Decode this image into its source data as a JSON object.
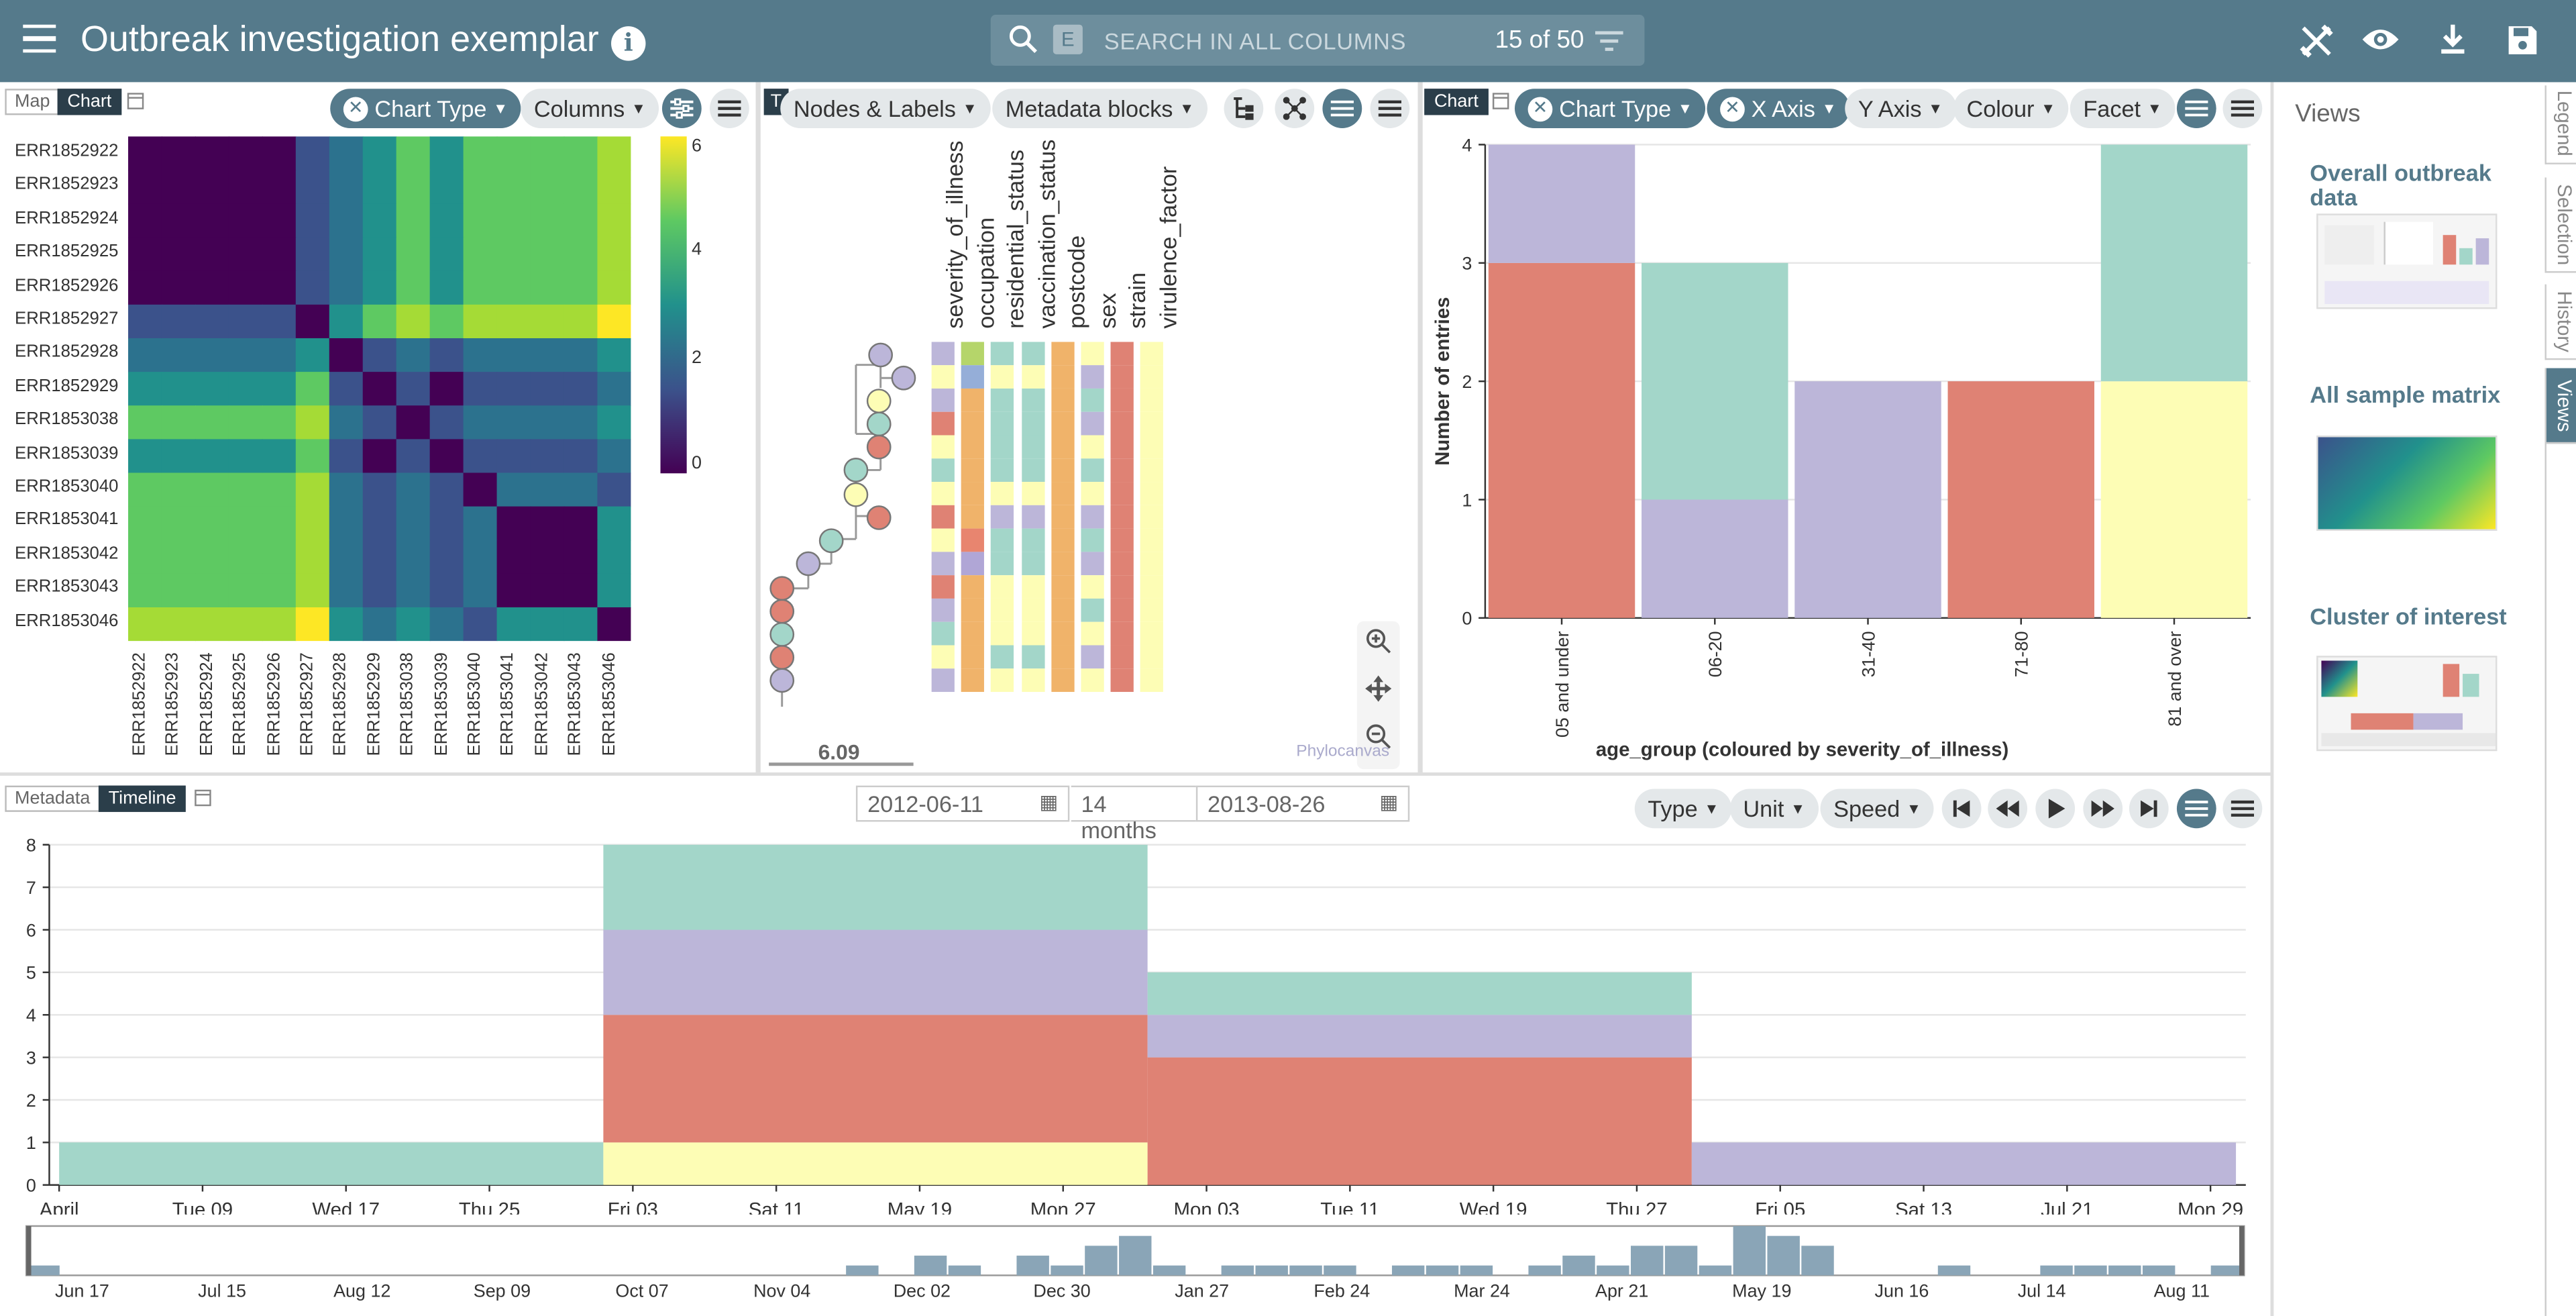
{
  "header": {
    "title": "Outbreak investigation exemplar",
    "search_placeholder": "SEARCH IN ALL COLUMNS",
    "search_count": "15 of 50",
    "search_chip": "E"
  },
  "matrix_panel": {
    "tab_map": "Map",
    "tab_chart": "Chart",
    "chart_type": "Chart Type",
    "columns": "Columns",
    "row_labels": [
      "ERR1852922",
      "ERR1852923",
      "ERR1852924",
      "ERR1852925",
      "ERR1852926",
      "ERR1852927",
      "ERR1852928",
      "ERR1852929",
      "ERR1853038",
      "ERR1853039",
      "ERR1853040",
      "ERR1853041",
      "ERR1853042",
      "ERR1853043",
      "ERR1853046"
    ],
    "scale_labels": [
      "6",
      "4",
      "2",
      "0"
    ]
  },
  "tree_panel": {
    "tab": "T",
    "nodes_labels": "Nodes & Labels",
    "metadata_blocks": "Metadata blocks",
    "scale_value": "6.09",
    "brand": "Phylocanvas",
    "columns": [
      "severity_of_illness",
      "occupation",
      "residential_status",
      "vaccination_status",
      "postcode",
      "sex",
      "strain",
      "virulence_factor"
    ]
  },
  "bar_panel": {
    "tab": "Chart",
    "chart_type": "Chart Type",
    "x_axis": "X Axis",
    "y_axis": "Y Axis",
    "colour": "Colour",
    "facet": "Facet"
  },
  "timeline_panel": {
    "tab_metadata": "Metadata",
    "tab_timeline": "Timeline",
    "start_date": "2012-06-11",
    "duration": "14 months",
    "end_date": "2013-08-26",
    "type": "Type",
    "unit": "Unit",
    "speed": "Speed",
    "x_ticks": [
      "April",
      "Tue 09",
      "Wed 17",
      "Thu 25",
      "Fri 03",
      "Sat 11",
      "May 19",
      "Mon 27",
      "Mon 03",
      "Tue 11",
      "Wed 19",
      "Thu 27",
      "Fri 05",
      "Sat 13",
      "Jul 21",
      "Mon 29"
    ],
    "brush_ticks": [
      "Jun 17",
      "Jul 15",
      "Aug 12",
      "Sep 09",
      "Oct 07",
      "Nov 04",
      "Dec 02",
      "Dec 30",
      "Jan 27",
      "Feb 24",
      "Mar 24",
      "Apr 21",
      "May 19",
      "Jun 16",
      "Jul 14",
      "Aug 11"
    ]
  },
  "views_panel": {
    "title": "Views",
    "items": [
      {
        "label": "Overall outbreak data"
      },
      {
        "label": "All sample matrix"
      },
      {
        "label": "Cluster of interest"
      }
    ],
    "side_tabs": [
      "Legend",
      "Selection",
      "History",
      "Views"
    ]
  },
  "colors": {
    "header": "#557a8b",
    "teal": "#a3d6c9",
    "lavender": "#bcb6d9",
    "salmon": "#df8274",
    "yellow": "#fdfdb5",
    "brush": "#8aa5b7"
  },
  "chart_data": [
    {
      "type": "heatmap",
      "title": "",
      "rows": [
        "ERR1852922",
        "ERR1852923",
        "ERR1852924",
        "ERR1852925",
        "ERR1852926",
        "ERR1852927",
        "ERR1852928",
        "ERR1852929",
        "ERR1853038",
        "ERR1853039",
        "ERR1853040",
        "ERR1853041",
        "ERR1853042",
        "ERR1853043",
        "ERR1853046"
      ],
      "columns": [
        "ERR1852922",
        "ERR1852923",
        "ERR1852924",
        "ERR1852925",
        "ERR1852926",
        "ERR1852927",
        "ERR1852928",
        "ERR1852929",
        "ERR1853038",
        "ERR1853039",
        "ERR1853040",
        "ERR1853041",
        "ERR1853042",
        "ERR1853043",
        "ERR1853046"
      ],
      "range": [
        0,
        6
      ],
      "values": [
        [
          0,
          0,
          0,
          0,
          0,
          1,
          2,
          3,
          4,
          3,
          4,
          4,
          4,
          4,
          5
        ],
        [
          0,
          0,
          0,
          0,
          0,
          1,
          2,
          3,
          4,
          3,
          4,
          4,
          4,
          4,
          5
        ],
        [
          0,
          0,
          0,
          0,
          0,
          1,
          2,
          3,
          4,
          3,
          4,
          4,
          4,
          4,
          5
        ],
        [
          0,
          0,
          0,
          0,
          0,
          1,
          2,
          3,
          4,
          3,
          4,
          4,
          4,
          4,
          5
        ],
        [
          0,
          0,
          0,
          0,
          0,
          1,
          2,
          3,
          4,
          3,
          4,
          4,
          4,
          4,
          5
        ],
        [
          1,
          1,
          1,
          1,
          1,
          0,
          3,
          4,
          5,
          4,
          5,
          5,
          5,
          5,
          6
        ],
        [
          2,
          2,
          2,
          2,
          2,
          3,
          0,
          1,
          2,
          1,
          2,
          2,
          2,
          2,
          3
        ],
        [
          3,
          3,
          3,
          3,
          3,
          4,
          1,
          0,
          1,
          0,
          1,
          1,
          1,
          1,
          2
        ],
        [
          4,
          4,
          4,
          4,
          4,
          5,
          2,
          1,
          0,
          1,
          2,
          2,
          2,
          2,
          3
        ],
        [
          3,
          3,
          3,
          3,
          3,
          4,
          1,
          0,
          1,
          0,
          1,
          1,
          1,
          1,
          2
        ],
        [
          4,
          4,
          4,
          4,
          4,
          5,
          2,
          1,
          2,
          1,
          0,
          2,
          2,
          2,
          1
        ],
        [
          4,
          4,
          4,
          4,
          4,
          5,
          2,
          1,
          2,
          1,
          2,
          0,
          0,
          0,
          3
        ],
        [
          4,
          4,
          4,
          4,
          4,
          5,
          2,
          1,
          2,
          1,
          2,
          0,
          0,
          0,
          3
        ],
        [
          4,
          4,
          4,
          4,
          4,
          5,
          2,
          1,
          2,
          1,
          2,
          0,
          0,
          0,
          3
        ],
        [
          5,
          5,
          5,
          5,
          5,
          6,
          3,
          2,
          3,
          2,
          1,
          3,
          3,
          3,
          0
        ]
      ]
    },
    {
      "type": "bar",
      "stacked": true,
      "xlabel": "age_group (coloured by severity_of_illness)",
      "ylabel": "Number of entries",
      "ylim": [
        0,
        4
      ],
      "categories": [
        "05 and  under",
        "06-20",
        "31-40",
        "71-80",
        "81 and over"
      ],
      "series": [
        {
          "color": "#df8274",
          "values": [
            3,
            0,
            0,
            2,
            0
          ]
        },
        {
          "color": "#fdfdb5",
          "values": [
            0,
            0,
            0,
            0,
            2
          ]
        },
        {
          "color": "#bcb6d9",
          "values": [
            1,
            1,
            2,
            0,
            0
          ]
        },
        {
          "color": "#a3d6c9",
          "values": [
            0,
            2,
            0,
            0,
            2
          ]
        }
      ]
    },
    {
      "type": "bar",
      "stacked": true,
      "title": "",
      "ylim": [
        0,
        8
      ],
      "y_ticks": [
        0,
        1,
        2,
        3,
        4,
        5,
        6,
        7,
        8
      ],
      "segments": [
        {
          "start": 0,
          "end": 4,
          "stack": [
            {
              "color": "#a3d6c9",
              "value": 1
            }
          ]
        },
        {
          "start": 4,
          "end": 8,
          "stack": [
            {
              "color": "#fdfdb5",
              "value": 1
            },
            {
              "color": "#df8274",
              "value": 3
            },
            {
              "color": "#bcb6d9",
              "value": 2
            },
            {
              "color": "#a3d6c9",
              "value": 2
            }
          ]
        },
        {
          "start": 8,
          "end": 12,
          "stack": [
            {
              "color": "#df8274",
              "value": 3
            },
            {
              "color": "#bcb6d9",
              "value": 1
            },
            {
              "color": "#a3d6c9",
              "value": 1
            }
          ]
        },
        {
          "start": 12,
          "end": 16,
          "stack": [
            {
              "color": "#bcb6d9",
              "value": 1
            }
          ]
        }
      ],
      "brush_values": [
        1,
        0,
        0,
        0,
        0,
        0,
        0,
        0,
        0,
        0,
        0,
        0,
        0,
        0,
        0,
        0,
        0,
        0,
        0,
        0,
        0,
        0,
        0,
        0,
        1,
        0,
        2,
        1,
        0,
        2,
        1,
        3,
        4,
        1,
        0,
        1,
        1,
        1,
        1,
        0,
        1,
        1,
        1,
        0,
        1,
        2,
        1,
        3,
        3,
        1,
        5,
        4,
        3,
        0,
        0,
        0,
        1,
        0,
        0,
        1,
        1,
        1,
        1,
        0,
        1
      ]
    }
  ]
}
